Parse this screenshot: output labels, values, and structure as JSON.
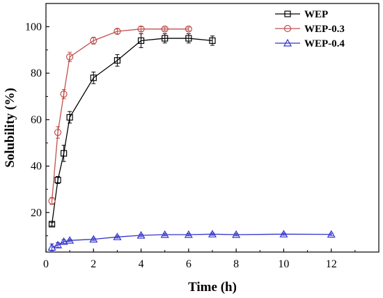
{
  "chart_data": {
    "type": "line",
    "xlabel": "Time (h)",
    "ylabel": "Solubility (%)",
    "xlim": [
      0,
      14
    ],
    "ylim": [
      3,
      110
    ],
    "x_ticks": [
      0,
      2,
      4,
      6,
      8,
      10,
      12
    ],
    "y_ticks": [
      20,
      40,
      60,
      80,
      100
    ],
    "legend_position": "top-right",
    "grid": false,
    "series": [
      {
        "name": "WEP",
        "color": "#000000",
        "marker": "square",
        "x": [
          0.25,
          0.5,
          0.75,
          1,
          2,
          3,
          4,
          5,
          6,
          7
        ],
        "y": [
          15,
          34,
          45.5,
          61,
          78,
          85.5,
          94,
          95,
          95,
          94
        ],
        "err": [
          0.8,
          1.5,
          3.5,
          2.5,
          2.5,
          2.5,
          3,
          2,
          2,
          2
        ]
      },
      {
        "name": "WEP-0.3",
        "color": "#c0504d",
        "marker": "circle",
        "x": [
          0.25,
          0.5,
          0.75,
          1,
          2,
          3,
          4,
          5,
          6
        ],
        "y": [
          25,
          54.5,
          71,
          87,
          94,
          98,
          99,
          99,
          99
        ],
        "err": [
          1.5,
          2.5,
          2,
          2,
          1.5,
          1,
          1,
          0.8,
          0.8
        ]
      },
      {
        "name": "WEP-0.4",
        "color": "#3333cc",
        "marker": "triangle",
        "x": [
          0.25,
          0.5,
          0.75,
          1,
          2,
          3,
          4,
          5,
          6,
          7,
          8,
          10,
          12
        ],
        "y": [
          5,
          6,
          7.5,
          8,
          8.5,
          9.5,
          10.2,
          10.5,
          10.5,
          10.7,
          10.5,
          10.7,
          10.6
        ],
        "err": [
          1.5,
          1,
          0.8,
          0.5,
          0.5,
          0.5,
          0.5,
          0.5,
          0.5,
          0.5,
          0.5,
          0.5,
          0.5
        ]
      }
    ]
  }
}
